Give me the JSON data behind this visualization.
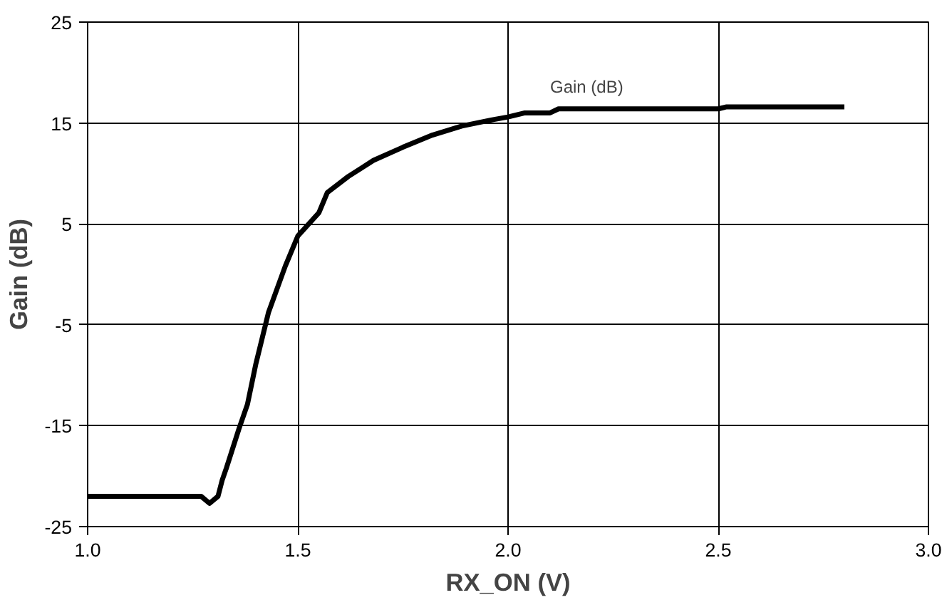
{
  "chart_data": {
    "type": "line",
    "xlabel": "RX_ON (V)",
    "ylabel": "Gain (dB)",
    "xlim": [
      1.0,
      3.0
    ],
    "ylim": [
      -25,
      25
    ],
    "xticks": [
      {
        "value": 1.0,
        "label": "1.0"
      },
      {
        "value": 1.5,
        "label": "1.5"
      },
      {
        "value": 2.0,
        "label": "2.0"
      },
      {
        "value": 2.5,
        "label": "2.5"
      },
      {
        "value": 3.0,
        "label": "3.0"
      }
    ],
    "yticks": [
      -25,
      -15,
      -5,
      5,
      15,
      25
    ],
    "grid": true,
    "marker": "none",
    "line_style": "solid",
    "series": [
      {
        "name": "Gain (dB)",
        "color": "#000000",
        "x": [
          1.0,
          1.27,
          1.29,
          1.31,
          1.32,
          1.33,
          1.36,
          1.38,
          1.4,
          1.43,
          1.47,
          1.5,
          1.55,
          1.57,
          1.62,
          1.68,
          1.75,
          1.82,
          1.89,
          1.96,
          2.0,
          2.04,
          2.1,
          2.12,
          2.5,
          2.52,
          2.8
        ],
        "values": [
          -22,
          -22,
          -22.7,
          -22,
          -20.4,
          -19.2,
          -15.3,
          -12.9,
          -8.9,
          -3.8,
          0.8,
          3.8,
          6.1,
          8.1,
          9.7,
          11.3,
          12.6,
          13.8,
          14.7,
          15.3,
          15.6,
          16.0,
          16.0,
          16.4,
          16.4,
          16.6,
          16.6
        ]
      }
    ]
  }
}
